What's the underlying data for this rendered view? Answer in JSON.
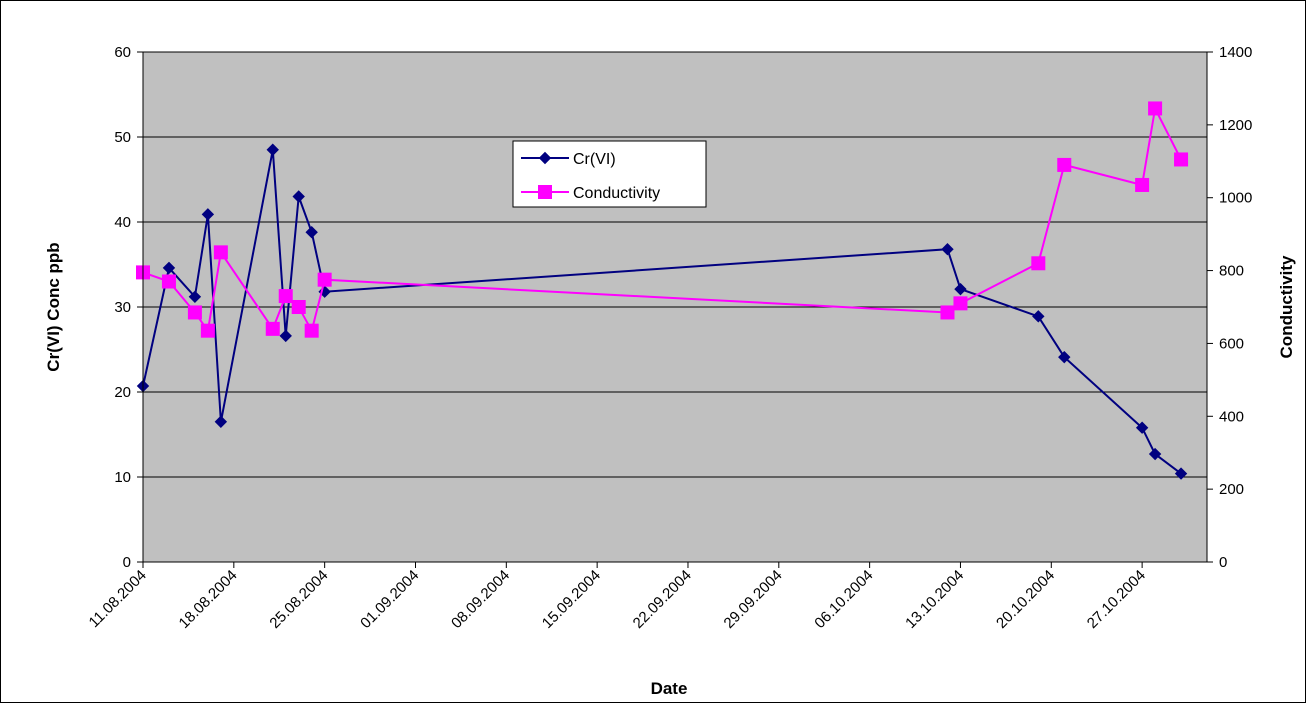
{
  "chart_data": {
    "type": "line",
    "xlabel": "Date",
    "ylabel": "Cr(VI) Conc ppb",
    "y2label": "Conductivity",
    "xlim": [
      "2004-08-11",
      "2004-11-01"
    ],
    "ylim": [
      0,
      60
    ],
    "y2lim": [
      0,
      1400
    ],
    "yticks": [
      0,
      10,
      20,
      30,
      40,
      50,
      60
    ],
    "y2ticks": [
      0,
      200,
      400,
      600,
      800,
      1000,
      1200,
      1400
    ],
    "xticks": [
      "2004-08-11",
      "2004-08-18",
      "2004-08-25",
      "2004-09-01",
      "2004-09-08",
      "2004-09-15",
      "2004-09-22",
      "2004-09-29",
      "2004-10-06",
      "2004-10-13",
      "2004-10-20",
      "2004-10-27"
    ],
    "xtick_labels": [
      "11.08.2004",
      "18.08.2004",
      "25.08.2004",
      "01.09.2004",
      "08.09.2004",
      "15.09.2004",
      "22.09.2004",
      "29.09.2004",
      "06.10.2004",
      "13.10.2004",
      "20.10.2004",
      "27.10.2004"
    ],
    "grid": "horizontal",
    "plot_background": "#c0c0c0",
    "legend_position": "top-center",
    "series": [
      {
        "name": "Cr(VI)",
        "axis": "left",
        "color": "#000080",
        "marker": "diamond",
        "points": [
          [
            "2004-08-11",
            20.7
          ],
          [
            "2004-08-13",
            34.6
          ],
          [
            "2004-08-15",
            31.2
          ],
          [
            "2004-08-16",
            40.9
          ],
          [
            "2004-08-17",
            16.5
          ],
          [
            "2004-08-21",
            48.5
          ],
          [
            "2004-08-22",
            26.6
          ],
          [
            "2004-08-23",
            43.0
          ],
          [
            "2004-08-24",
            38.8
          ],
          [
            "2004-08-25",
            31.8
          ],
          [
            "2004-10-12",
            36.8
          ],
          [
            "2004-10-13",
            32.1
          ],
          [
            "2004-10-19",
            28.9
          ],
          [
            "2004-10-21",
            24.1
          ],
          [
            "2004-10-27",
            15.8
          ],
          [
            "2004-10-28",
            12.7
          ],
          [
            "2004-10-30",
            10.4
          ]
        ]
      },
      {
        "name": "Conductivity",
        "axis": "right",
        "color": "#ff00ff",
        "marker": "square",
        "points": [
          [
            "2004-08-11",
            795
          ],
          [
            "2004-08-13",
            770
          ],
          [
            "2004-08-15",
            685
          ],
          [
            "2004-08-16",
            635
          ],
          [
            "2004-08-17",
            850
          ],
          [
            "2004-08-21",
            640
          ],
          [
            "2004-08-22",
            730
          ],
          [
            "2004-08-23",
            700
          ],
          [
            "2004-08-24",
            635
          ],
          [
            "2004-08-25",
            775
          ],
          [
            "2004-10-12",
            685
          ],
          [
            "2004-10-13",
            710
          ],
          [
            "2004-10-19",
            820
          ],
          [
            "2004-10-21",
            1090
          ],
          [
            "2004-10-27",
            1035
          ],
          [
            "2004-10-28",
            1245
          ],
          [
            "2004-10-30",
            1105
          ]
        ]
      }
    ]
  }
}
